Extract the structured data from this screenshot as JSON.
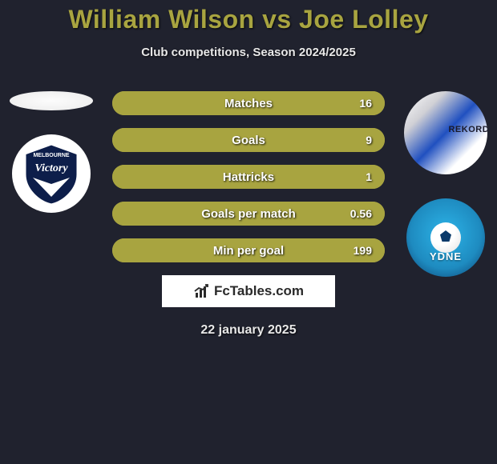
{
  "title": "William Wilson vs Joe Lolley",
  "subtitle": "Club competitions, Season 2024/2025",
  "date": "22 january 2025",
  "branding_text": "FcTables.com",
  "colors": {
    "background": "#20222e",
    "accent": "#a8a440",
    "bar_track": "#2a2c38",
    "text": "#ffffff"
  },
  "stats": {
    "type": "horizontal-bar",
    "rows": [
      {
        "label": "Matches",
        "value": "16",
        "fill_pct": 100
      },
      {
        "label": "Goals",
        "value": "9",
        "fill_pct": 100
      },
      {
        "label": "Hattricks",
        "value": "1",
        "fill_pct": 100
      },
      {
        "label": "Goals per match",
        "value": "0.56",
        "fill_pct": 100
      },
      {
        "label": "Min per goal",
        "value": "199",
        "fill_pct": 100
      }
    ]
  },
  "left": {
    "player": "William Wilson",
    "club_text_top": "MELBOURNE",
    "club_text_bottom": "Victory"
  },
  "right": {
    "player": "Joe Lolley",
    "club_text": "YDNE"
  }
}
